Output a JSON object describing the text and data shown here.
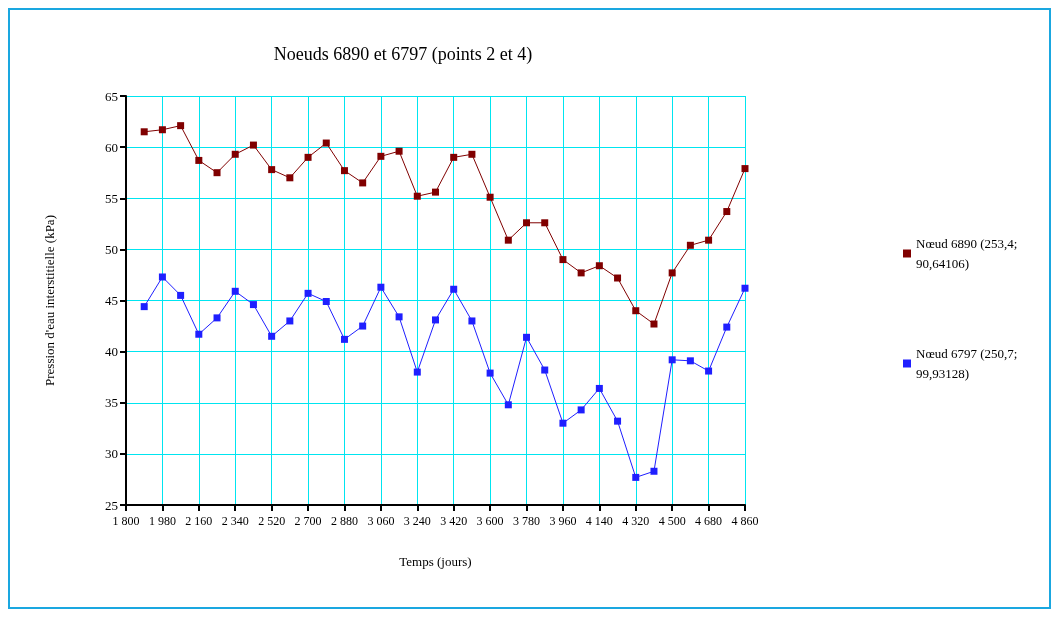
{
  "chart_data": {
    "type": "line",
    "title": "Noeuds 6890 et 6797 (points 2 et 4)",
    "xlabel": "Temps (jours)",
    "ylabel": "Pression d'eau interstitielle (kPa)",
    "x": [
      1890,
      1980,
      2070,
      2160,
      2250,
      2340,
      2430,
      2520,
      2610,
      2700,
      2790,
      2880,
      2970,
      3060,
      3150,
      3240,
      3330,
      3420,
      3510,
      3600,
      3690,
      3780,
      3870,
      3960,
      4050,
      4140,
      4230,
      4320,
      4410,
      4500,
      4590,
      4680,
      4770,
      4860
    ],
    "series": [
      {
        "name": "Nœud 6890 (253,4; 90,64106)",
        "color": "#800000",
        "values": [
          61.5,
          61.7,
          62.1,
          58.7,
          57.5,
          59.3,
          60.2,
          57.8,
          57.0,
          59.0,
          60.4,
          57.7,
          56.5,
          59.1,
          59.6,
          55.2,
          55.6,
          59.0,
          59.3,
          55.1,
          50.9,
          52.6,
          52.6,
          49.0,
          47.7,
          48.4,
          47.2,
          44.0,
          42.7,
          47.7,
          50.4,
          50.9,
          53.7,
          57.9
        ]
      },
      {
        "name": "Nœud 6797 (250,7; 99,93128)",
        "color": "#1f1fff",
        "values": [
          44.4,
          47.3,
          45.5,
          41.7,
          43.3,
          45.9,
          44.6,
          41.5,
          43.0,
          45.7,
          44.9,
          41.2,
          42.5,
          46.3,
          43.4,
          38.0,
          43.1,
          46.1,
          43.0,
          37.9,
          34.8,
          41.4,
          38.2,
          33.0,
          34.3,
          36.4,
          33.2,
          27.7,
          28.3,
          39.2,
          39.1,
          38.1,
          42.4,
          46.2
        ]
      }
    ],
    "xlim": [
      1800,
      4860
    ],
    "xticks": [
      {
        "value": 1800,
        "label": "1 800"
      },
      {
        "value": 1980,
        "label": "1 980"
      },
      {
        "value": 2160,
        "label": "2 160"
      },
      {
        "value": 2340,
        "label": "2 340"
      },
      {
        "value": 2520,
        "label": "2 520"
      },
      {
        "value": 2700,
        "label": "2 700"
      },
      {
        "value": 2880,
        "label": "2 880"
      },
      {
        "value": 3060,
        "label": "3 060"
      },
      {
        "value": 3240,
        "label": "3 240"
      },
      {
        "value": 3420,
        "label": "3 420"
      },
      {
        "value": 3600,
        "label": "3 600"
      },
      {
        "value": 3780,
        "label": "3 780"
      },
      {
        "value": 3960,
        "label": "3 960"
      },
      {
        "value": 4140,
        "label": "4 140"
      },
      {
        "value": 4320,
        "label": "4 320"
      },
      {
        "value": 4500,
        "label": "4 500"
      },
      {
        "value": 4680,
        "label": "4 680"
      },
      {
        "value": 4860,
        "label": "4 860"
      }
    ],
    "ylim": [
      25,
      65
    ],
    "yticks": [
      25,
      30,
      35,
      40,
      45,
      50,
      55,
      60,
      65
    ],
    "grid": true,
    "legend": "right",
    "marker": "square",
    "line_style": "solid"
  }
}
